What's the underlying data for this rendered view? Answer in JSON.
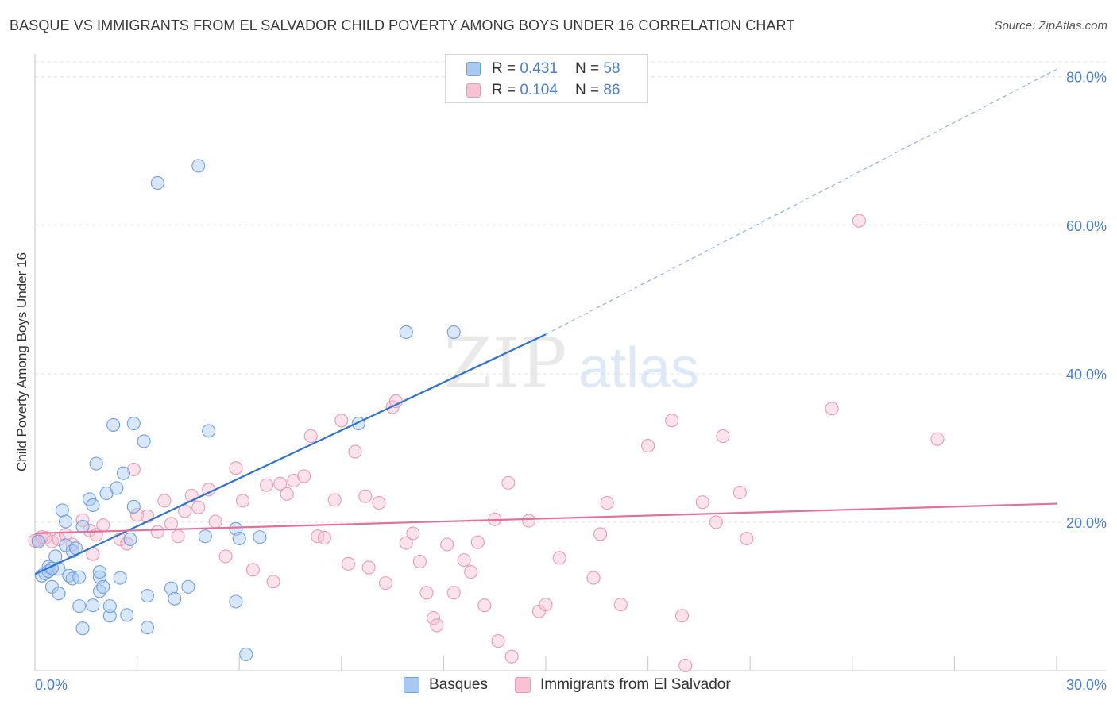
{
  "title": "BASQUE VS IMMIGRANTS FROM EL SALVADOR CHILD POVERTY AMONG BOYS UNDER 16 CORRELATION CHART",
  "source": "Source: ZipAtlas.com",
  "watermark": {
    "zip": "ZIP",
    "atlas": "atlas"
  },
  "legend": {
    "r_label": "R =",
    "n_label": "N =",
    "rows": [
      {
        "r": "0.431",
        "n": "58",
        "color": "#a9c9f2",
        "border": "#6fa0e0"
      },
      {
        "r": "0.104",
        "n": "86",
        "color": "#f7c2d2",
        "border": "#e99ab4"
      }
    ]
  },
  "bottom_legend": [
    "Basques",
    "Immigrants from El Salvador"
  ],
  "chart_data": {
    "type": "scatter",
    "title": "BASQUE VS IMMIGRANTS FROM EL SALVADOR CHILD POVERTY AMONG BOYS UNDER 16 CORRELATION CHART",
    "xlabel": "",
    "ylabel": "Child Poverty Among Boys Under 16",
    "xlim": [
      0,
      30
    ],
    "ylim": [
      0,
      82
    ],
    "x_tick_labels": [
      "0.0%",
      "30.0%"
    ],
    "y_ticks": [
      20,
      40,
      60,
      80
    ],
    "y_tick_labels": [
      "20.0%",
      "40.0%",
      "60.0%",
      "80.0%"
    ],
    "grid": "horizontal dashed",
    "legend_position": "top-center",
    "series": [
      {
        "name": "Basques",
        "color": "#6fa0e0",
        "fill": "#a9c9f2",
        "r": 0.431,
        "n": 58,
        "trend": {
          "x": [
            0,
            15
          ],
          "y": [
            13.0,
            45.3
          ],
          "extended_x": [
            15,
            30
          ],
          "extended_y": [
            45.3,
            81.0
          ]
        },
        "points": [
          [
            0.1,
            17.4
          ],
          [
            0.2,
            12.8
          ],
          [
            0.3,
            13.1
          ],
          [
            0.4,
            14.0
          ],
          [
            0.4,
            13.4
          ],
          [
            0.5,
            11.3
          ],
          [
            0.6,
            15.4
          ],
          [
            0.7,
            10.4
          ],
          [
            0.7,
            13.7
          ],
          [
            0.8,
            21.6
          ],
          [
            0.9,
            16.9
          ],
          [
            0.9,
            20.1
          ],
          [
            1.0,
            12.8
          ],
          [
            1.1,
            16.1
          ],
          [
            1.1,
            12.4
          ],
          [
            1.2,
            16.5
          ],
          [
            1.3,
            12.6
          ],
          [
            1.3,
            8.7
          ],
          [
            1.4,
            5.7
          ],
          [
            1.6,
            23.1
          ],
          [
            1.7,
            22.3
          ],
          [
            1.7,
            8.8
          ],
          [
            1.8,
            27.9
          ],
          [
            1.9,
            12.6
          ],
          [
            1.9,
            13.3
          ],
          [
            1.9,
            10.7
          ],
          [
            2.0,
            11.3
          ],
          [
            2.1,
            23.9
          ],
          [
            2.2,
            7.4
          ],
          [
            2.2,
            8.7
          ],
          [
            2.3,
            33.1
          ],
          [
            2.4,
            24.6
          ],
          [
            2.5,
            12.5
          ],
          [
            2.6,
            26.6
          ],
          [
            2.7,
            7.5
          ],
          [
            2.8,
            17.7
          ],
          [
            2.9,
            22.1
          ],
          [
            2.9,
            33.3
          ],
          [
            3.2,
            30.9
          ],
          [
            3.3,
            10.1
          ],
          [
            3.3,
            5.8
          ],
          [
            3.6,
            65.7
          ],
          [
            4.0,
            11.1
          ],
          [
            4.1,
            9.7
          ],
          [
            4.5,
            11.3
          ],
          [
            4.8,
            68.0
          ],
          [
            5.0,
            18.1
          ],
          [
            5.1,
            32.3
          ],
          [
            5.9,
            19.1
          ],
          [
            5.9,
            9.3
          ],
          [
            6.0,
            17.8
          ],
          [
            6.2,
            2.2
          ],
          [
            6.6,
            18.0
          ],
          [
            9.5,
            33.3
          ],
          [
            10.9,
            45.6
          ],
          [
            12.3,
            45.6
          ],
          [
            0.5,
            13.8
          ],
          [
            1.4,
            19.4
          ]
        ]
      },
      {
        "name": "Immigrants from El Salvador",
        "color": "#e99ab4",
        "fill": "#f7c2d2",
        "r": 0.104,
        "n": 86,
        "trend": {
          "x": [
            0,
            30
          ],
          "y": [
            18.5,
            22.5
          ]
        },
        "points": [
          [
            0.1,
            17.6
          ],
          [
            0.3,
            17.9
          ],
          [
            0.5,
            17.4
          ],
          [
            0.7,
            17.7
          ],
          [
            0.9,
            18.3
          ],
          [
            1.1,
            17.0
          ],
          [
            1.4,
            20.3
          ],
          [
            1.6,
            18.9
          ],
          [
            1.7,
            15.7
          ],
          [
            1.8,
            18.3
          ],
          [
            2.0,
            19.6
          ],
          [
            2.5,
            17.7
          ],
          [
            2.7,
            17.1
          ],
          [
            2.9,
            27.1
          ],
          [
            3.0,
            21.0
          ],
          [
            3.3,
            20.8
          ],
          [
            3.6,
            18.7
          ],
          [
            3.8,
            22.9
          ],
          [
            4.0,
            19.8
          ],
          [
            4.2,
            18.1
          ],
          [
            4.4,
            21.5
          ],
          [
            4.6,
            23.6
          ],
          [
            4.8,
            22.0
          ],
          [
            5.1,
            24.4
          ],
          [
            5.3,
            20.1
          ],
          [
            5.6,
            15.4
          ],
          [
            5.9,
            27.3
          ],
          [
            6.1,
            22.9
          ],
          [
            6.4,
            13.6
          ],
          [
            6.8,
            25.0
          ],
          [
            7.0,
            12.0
          ],
          [
            7.2,
            25.2
          ],
          [
            7.4,
            23.8
          ],
          [
            7.6,
            25.6
          ],
          [
            7.9,
            26.2
          ],
          [
            8.1,
            31.6
          ],
          [
            8.3,
            18.1
          ],
          [
            8.5,
            17.9
          ],
          [
            8.8,
            23.0
          ],
          [
            9.0,
            33.7
          ],
          [
            9.2,
            14.4
          ],
          [
            9.4,
            29.5
          ],
          [
            9.7,
            23.5
          ],
          [
            9.8,
            13.9
          ],
          [
            10.1,
            22.6
          ],
          [
            10.3,
            11.8
          ],
          [
            10.5,
            35.5
          ],
          [
            10.6,
            36.3
          ],
          [
            10.9,
            17.2
          ],
          [
            11.1,
            18.5
          ],
          [
            11.3,
            14.7
          ],
          [
            11.5,
            10.5
          ],
          [
            11.7,
            7.1
          ],
          [
            11.8,
            6.1
          ],
          [
            12.1,
            17.0
          ],
          [
            12.3,
            10.5
          ],
          [
            12.6,
            14.9
          ],
          [
            12.8,
            13.3
          ],
          [
            13.0,
            17.3
          ],
          [
            13.2,
            8.8
          ],
          [
            13.5,
            20.4
          ],
          [
            13.6,
            4.0
          ],
          [
            13.9,
            25.3
          ],
          [
            14.0,
            1.9
          ],
          [
            14.5,
            20.2
          ],
          [
            14.8,
            8.0
          ],
          [
            15.0,
            8.9
          ],
          [
            15.4,
            15.2
          ],
          [
            16.4,
            12.5
          ],
          [
            16.6,
            18.4
          ],
          [
            16.8,
            22.6
          ],
          [
            17.2,
            8.9
          ],
          [
            18.0,
            30.3
          ],
          [
            18.7,
            33.7
          ],
          [
            19.0,
            7.4
          ],
          [
            19.1,
            0.7
          ],
          [
            19.6,
            22.7
          ],
          [
            20.0,
            20.0
          ],
          [
            20.2,
            31.6
          ],
          [
            20.7,
            24.0
          ],
          [
            20.9,
            17.8
          ],
          [
            23.4,
            35.3
          ],
          [
            24.2,
            60.6
          ],
          [
            26.5,
            31.2
          ],
          [
            0.0,
            17.5
          ],
          [
            0.2,
            18.0
          ]
        ]
      }
    ]
  }
}
